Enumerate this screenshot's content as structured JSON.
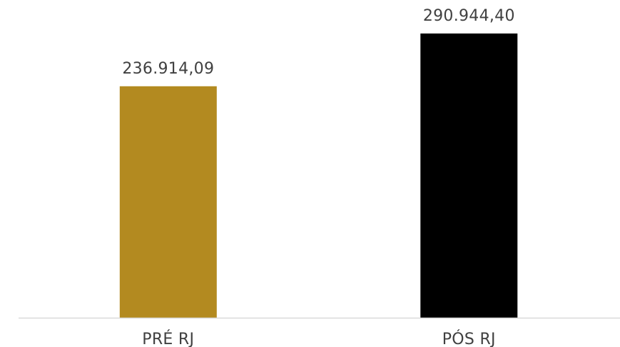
{
  "chart_data": {
    "type": "bar",
    "categories": [
      "PRÉ RJ",
      "PÓS RJ"
    ],
    "values": [
      236914.09,
      290944.4
    ],
    "data_labels": [
      "236.914,09",
      "290.944,40"
    ],
    "colors": [
      "#b38a20",
      "#000000"
    ],
    "baseline_color": "#d9d9d9",
    "label_color": "#404040",
    "title": "",
    "xlabel": "",
    "ylabel": "",
    "ylim": [
      0,
      296000
    ],
    "grid": false,
    "legend": "none"
  }
}
